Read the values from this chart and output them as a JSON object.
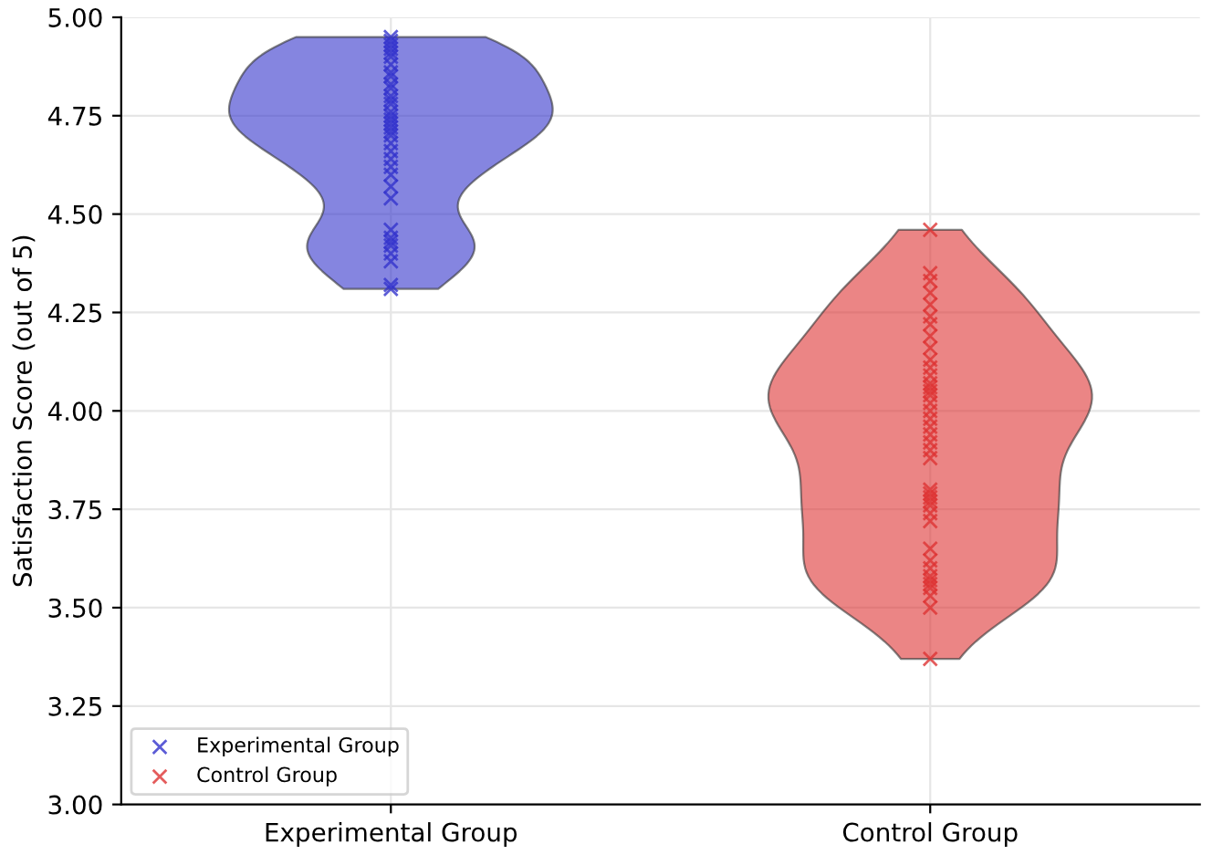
{
  "chart_data": {
    "type": "scatter",
    "ylabel": "Satisfaction Score (out of 5)",
    "categories": [
      "Experimental Group",
      "Control Group"
    ],
    "series": [
      {
        "name": "Experimental Group",
        "color": "#3333cc",
        "x": [
          "Experimental Group",
          "Experimental Group",
          "Experimental Group",
          "Experimental Group",
          "Experimental Group",
          "Experimental Group",
          "Experimental Group",
          "Experimental Group",
          "Experimental Group",
          "Experimental Group",
          "Experimental Group",
          "Experimental Group",
          "Experimental Group",
          "Experimental Group",
          "Experimental Group",
          "Experimental Group",
          "Experimental Group",
          "Experimental Group",
          "Experimental Group",
          "Experimental Group",
          "Experimental Group",
          "Experimental Group",
          "Experimental Group",
          "Experimental Group",
          "Experimental Group",
          "Experimental Group",
          "Experimental Group",
          "Experimental Group",
          "Experimental Group",
          "Experimental Group",
          "Experimental Group",
          "Experimental Group",
          "Experimental Group",
          "Experimental Group",
          "Experimental Group",
          "Experimental Group"
        ],
        "values": [
          4.95,
          4.94,
          4.93,
          4.92,
          4.91,
          4.9,
          4.88,
          4.86,
          4.85,
          4.83,
          4.82,
          4.8,
          4.79,
          4.78,
          4.76,
          4.75,
          4.74,
          4.73,
          4.72,
          4.71,
          4.7,
          4.68,
          4.66,
          4.64,
          4.62,
          4.6,
          4.57,
          4.54,
          4.46,
          4.44,
          4.43,
          4.42,
          4.4,
          4.38,
          4.32,
          4.31
        ]
      },
      {
        "name": "Control Group",
        "color": "#dd3333",
        "x": [
          "Control Group",
          "Control Group",
          "Control Group",
          "Control Group",
          "Control Group",
          "Control Group",
          "Control Group",
          "Control Group",
          "Control Group",
          "Control Group",
          "Control Group",
          "Control Group",
          "Control Group",
          "Control Group",
          "Control Group",
          "Control Group",
          "Control Group",
          "Control Group",
          "Control Group",
          "Control Group",
          "Control Group",
          "Control Group",
          "Control Group",
          "Control Group",
          "Control Group",
          "Control Group",
          "Control Group",
          "Control Group",
          "Control Group",
          "Control Group",
          "Control Group",
          "Control Group",
          "Control Group",
          "Control Group",
          "Control Group",
          "Control Group",
          "Control Group",
          "Control Group",
          "Control Group",
          "Control Group",
          "Control Group"
        ],
        "values": [
          4.46,
          4.35,
          4.33,
          4.3,
          4.27,
          4.24,
          4.22,
          4.19,
          4.16,
          4.13,
          4.11,
          4.09,
          4.07,
          4.06,
          4.05,
          4.04,
          4.02,
          4.0,
          3.98,
          3.96,
          3.94,
          3.92,
          3.9,
          3.88,
          3.8,
          3.79,
          3.78,
          3.77,
          3.76,
          3.74,
          3.72,
          3.65,
          3.62,
          3.6,
          3.58,
          3.57,
          3.56,
          3.55,
          3.53,
          3.5,
          3.37
        ]
      }
    ],
    "ylim": [
      3.0,
      5.0
    ],
    "yticks": [
      {
        "value": 3.0,
        "label": "3.00"
      },
      {
        "value": 3.25,
        "label": "3.25"
      },
      {
        "value": 3.5,
        "label": "3.50"
      },
      {
        "value": 3.75,
        "label": "3.75"
      },
      {
        "value": 4.0,
        "label": "4.00"
      },
      {
        "value": 4.25,
        "label": "4.25"
      },
      {
        "value": 4.5,
        "label": "4.50"
      },
      {
        "value": 4.75,
        "label": "4.75"
      },
      {
        "value": 5.0,
        "label": "5.00"
      }
    ],
    "grid": true,
    "legend": "bottom left",
    "marker": "cross"
  }
}
